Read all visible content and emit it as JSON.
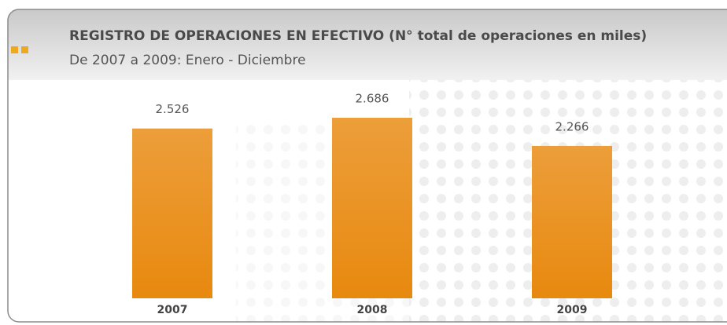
{
  "chart_data": {
    "type": "bar",
    "title": "REGISTRO DE OPERACIONES EN EFECTIVO (N° total de operaciones en miles)",
    "subtitle": "De 2007 a 2009: Enero - Diciembre",
    "categories": [
      "2007",
      "2008",
      "2009"
    ],
    "values": [
      2.526,
      2.686,
      2.266
    ],
    "color": "#e8890f"
  }
}
